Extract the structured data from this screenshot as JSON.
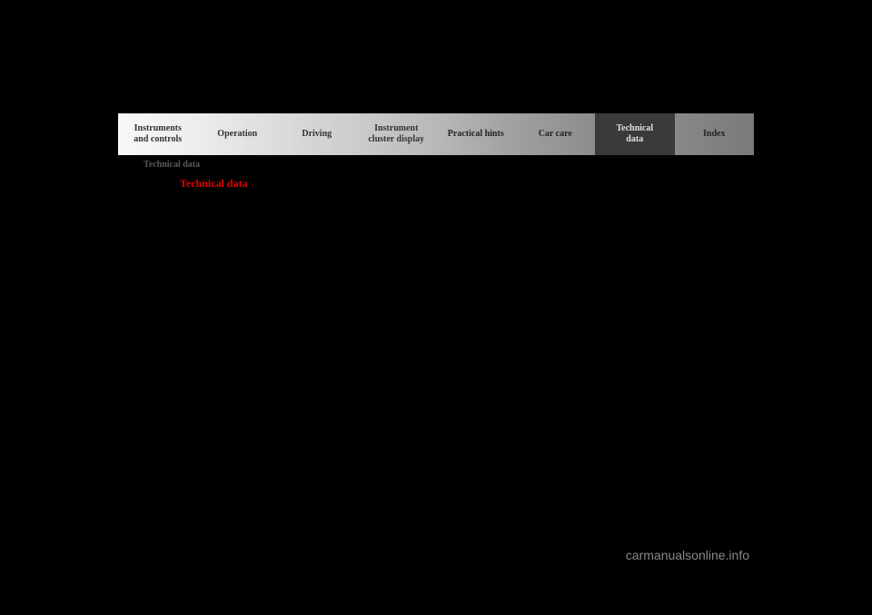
{
  "page": {
    "subtitle": "Technical data",
    "title": "Technical data",
    "watermark": "carmanualsonline.info"
  },
  "nav": {
    "items": [
      {
        "label": "Instruments\nand controls"
      },
      {
        "label": "Operation"
      },
      {
        "label": "Driving"
      },
      {
        "label": "Instrument\ncluster display"
      },
      {
        "label": "Practical hints"
      },
      {
        "label": "Car care"
      },
      {
        "label": "Technical\ndata"
      },
      {
        "label": "Index"
      }
    ]
  }
}
